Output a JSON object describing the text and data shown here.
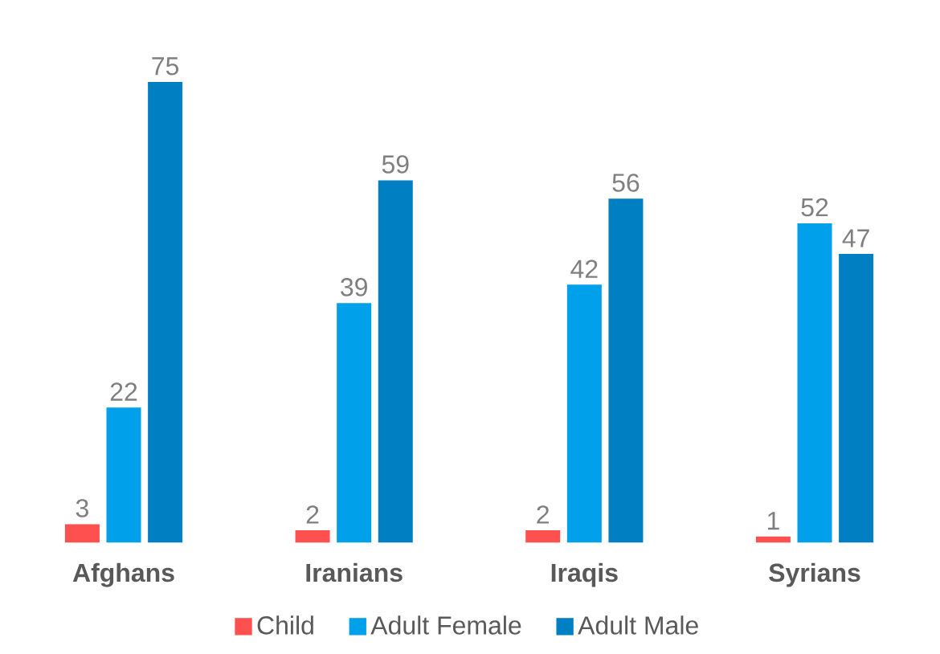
{
  "chart_data": {
    "type": "bar",
    "categories": [
      "Afghans",
      "Iranians",
      "Iraqis",
      "Syrians"
    ],
    "series": [
      {
        "name": "Child",
        "color": "#ff5050",
        "values": [
          3,
          2,
          2,
          1
        ]
      },
      {
        "name": "Adult Female",
        "color": "#00a0ea",
        "values": [
          22,
          39,
          42,
          52
        ]
      },
      {
        "name": "Adult Male",
        "color": "#007fc2",
        "values": [
          75,
          59,
          56,
          47
        ]
      }
    ],
    "tick_labels": "x",
    "data_labels": true,
    "legend": "bottom",
    "grid": false
  }
}
